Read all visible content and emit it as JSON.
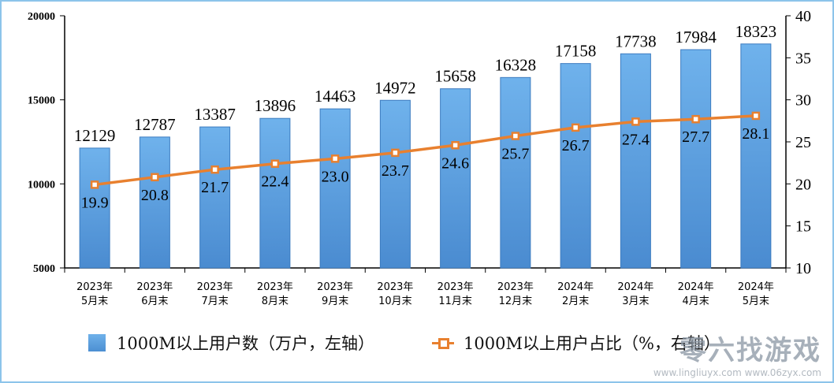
{
  "chart_data": {
    "type": "bar",
    "categories": [
      [
        "2023年",
        "5月末"
      ],
      [
        "2023年",
        "6月末"
      ],
      [
        "2023年",
        "7月末"
      ],
      [
        "2023年",
        "8月末"
      ],
      [
        "2023年",
        "9月末"
      ],
      [
        "2023年",
        "10月末"
      ],
      [
        "2023年",
        "11月末"
      ],
      [
        "2023年",
        "12月末"
      ],
      [
        "2024年",
        "2月末"
      ],
      [
        "2024年",
        "3月末"
      ],
      [
        "2024年",
        "4月末"
      ],
      [
        "2024年",
        "5月末"
      ]
    ],
    "series": [
      {
        "name": "1000M以上用户数（万户，左轴）",
        "type": "bar",
        "axis": "left",
        "color": "#5b9fe0",
        "values": [
          12129,
          12787,
          13387,
          13896,
          14463,
          14972,
          15658,
          16328,
          17158,
          17738,
          17984,
          18323
        ]
      },
      {
        "name": "1000M以上用户占比（%，右轴）",
        "type": "line",
        "axis": "right",
        "color": "#e8802f",
        "values": [
          19.9,
          20.8,
          21.7,
          22.4,
          23.0,
          23.7,
          24.6,
          25.7,
          26.7,
          27.4,
          27.7,
          28.1
        ],
        "labels": [
          "19.9",
          "20.8",
          "21.7",
          "22.4",
          "23.0",
          "23.7",
          "24.6",
          "25.7",
          "26.7",
          "27.4",
          "27.7",
          "28.1"
        ]
      }
    ],
    "y_left": {
      "range": [
        5000,
        20000
      ],
      "ticks": [
        "5000",
        "10000",
        "15000",
        "20000"
      ]
    },
    "y_right": {
      "range": [
        10,
        40
      ],
      "ticks": [
        "10",
        "15",
        "20",
        "25",
        "30",
        "35",
        "40"
      ]
    },
    "grid": false,
    "legend_placement": "bottom"
  },
  "legend": {
    "bar_label": "1000M以上用户数（万户，左轴）",
    "line_label": "1000M以上用户占比（%，右轴）"
  },
  "watermark": {
    "text": "零六找游戏",
    "urls": "www.lingliuyx.com  www.06zyx.com"
  }
}
